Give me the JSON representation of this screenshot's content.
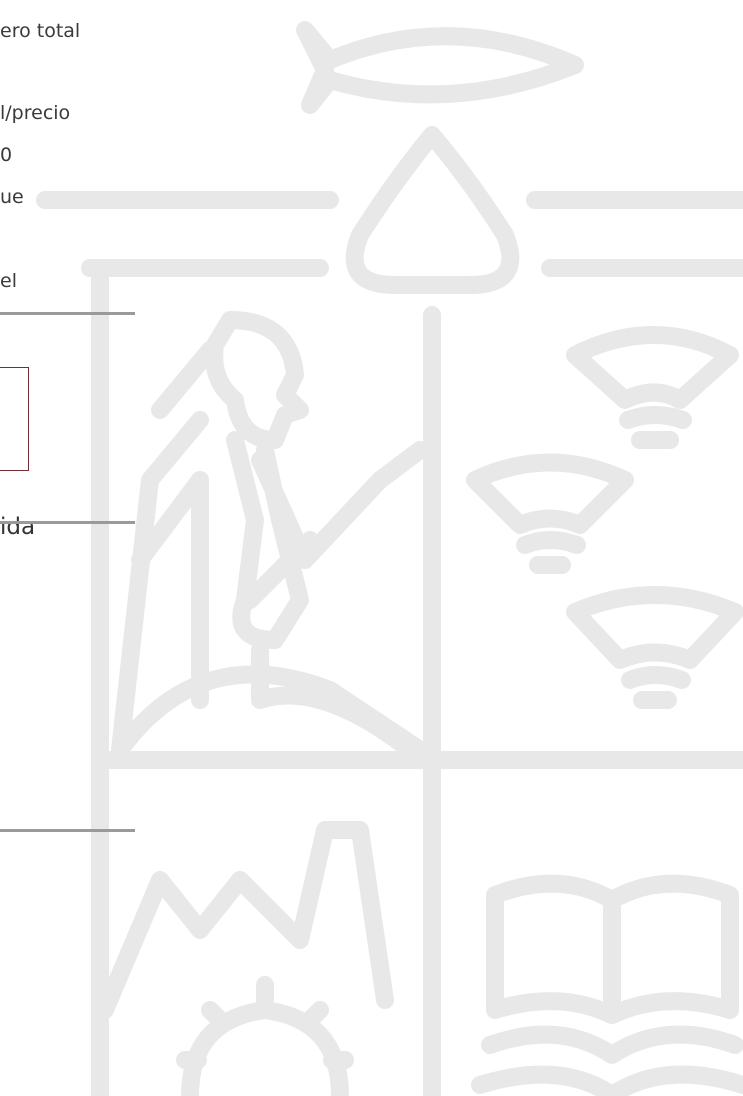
{
  "page": {
    "fragments": [
      "ero total",
      "l/precio",
      "0",
      "ue",
      "el",
      "ida"
    ]
  }
}
